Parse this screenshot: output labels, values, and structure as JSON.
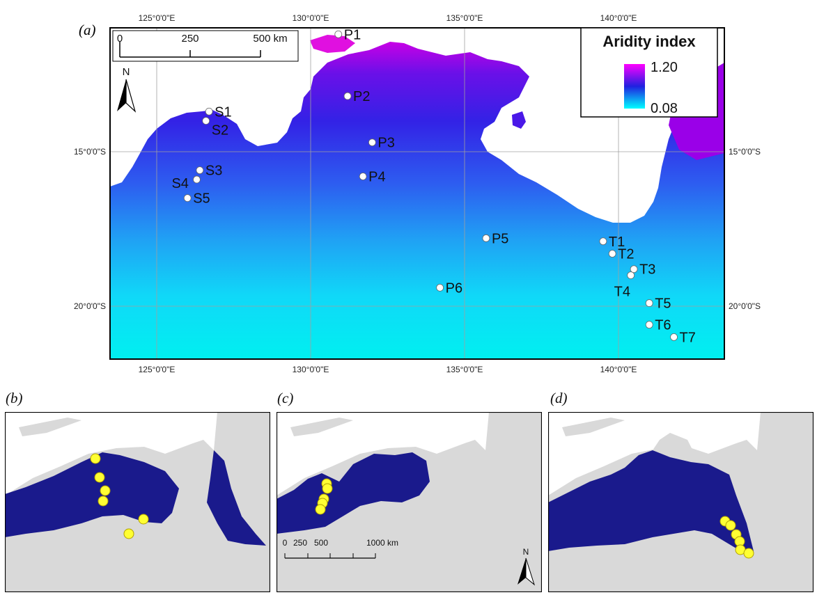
{
  "panels": {
    "main": {
      "letter": "(a)",
      "top_ticks": [
        "125°0'0\"E",
        "130°0'0\"E",
        "135°0'0\"E",
        "140°0'0\"E"
      ],
      "bottom_ticks": [
        "125°0'0\"E",
        "130°0'0\"E",
        "135°0'0\"E",
        "140°0'0\"E"
      ],
      "left_ticks": [
        "15°0'0\"S",
        "20°0'0\"S"
      ],
      "right_ticks": [
        "15°0'0\"S",
        "20°0'0\"S"
      ],
      "legend": {
        "title": "Aridity index",
        "max": "1.20",
        "min": "0.08",
        "color_high": "#ff00ff",
        "color_mid": "#2020e0",
        "color_low": "#00ffff"
      },
      "scale_bar": {
        "ticks": [
          "0",
          "250",
          "500 km"
        ]
      },
      "north_label": "N",
      "sites": [
        {
          "label": "P1",
          "lon": 130.9,
          "lat": -11.2
        },
        {
          "label": "P2",
          "lon": 131.2,
          "lat": -13.2
        },
        {
          "label": "P3",
          "lon": 132.0,
          "lat": -14.7
        },
        {
          "label": "P4",
          "lon": 131.7,
          "lat": -15.8
        },
        {
          "label": "P5",
          "lon": 135.7,
          "lat": -17.8
        },
        {
          "label": "P6",
          "lon": 134.2,
          "lat": -19.4
        },
        {
          "label": "S1",
          "lon": 126.7,
          "lat": -13.7
        },
        {
          "label": "S2",
          "lon": 126.6,
          "lat": -14.0
        },
        {
          "label": "S3",
          "lon": 126.4,
          "lat": -15.6
        },
        {
          "label": "S4",
          "lon": 126.3,
          "lat": -15.9
        },
        {
          "label": "S5",
          "lon": 126.0,
          "lat": -16.5
        },
        {
          "label": "T1",
          "lon": 139.5,
          "lat": -17.9
        },
        {
          "label": "T2",
          "lon": 139.8,
          "lat": -18.3
        },
        {
          "label": "T3",
          "lon": 140.5,
          "lat": -18.8
        },
        {
          "label": "T4",
          "lon": 140.4,
          "lat": -19.0
        },
        {
          "label": "T5",
          "lon": 141.0,
          "lat": -19.9
        },
        {
          "label": "T6",
          "lon": 141.0,
          "lat": -20.6
        },
        {
          "label": "T7",
          "lon": 141.8,
          "lat": -21.0
        }
      ]
    },
    "b": {
      "letter": "(b)"
    },
    "c": {
      "letter": "(c)",
      "scale_bar": {
        "ticks": [
          "0",
          "250",
          "500",
          "1000 km"
        ]
      },
      "north_label": "N"
    },
    "d": {
      "letter": "(d)"
    }
  },
  "colors": {
    "land": "#d9d9d9",
    "distribution": "#1a1a8c",
    "point": "#ffff33",
    "sea": "#ffffff"
  }
}
